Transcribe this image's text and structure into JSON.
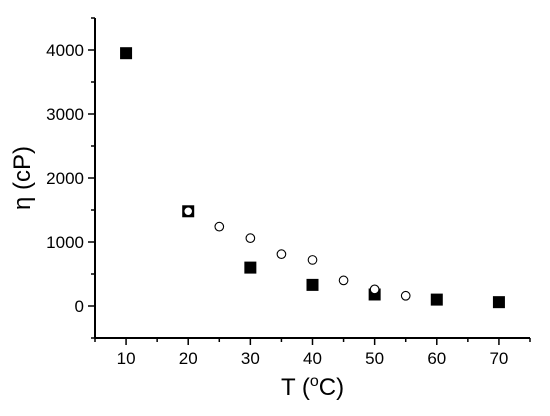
{
  "chart_data": {
    "type": "scatter",
    "xlabel_main": "T (",
    "xlabel_sup": "o",
    "xlabel_end": "C)",
    "ylabel": "η (cP)",
    "xlim": [
      5,
      75
    ],
    "ylim": [
      -500,
      4500
    ],
    "xticks": [
      10,
      20,
      30,
      40,
      50,
      60,
      70
    ],
    "yticks": [
      0,
      1000,
      2000,
      3000,
      4000
    ],
    "grid": false,
    "legend": false,
    "series": [
      {
        "marker": "filled-square",
        "x": [
          10,
          20,
          30,
          40,
          50,
          60,
          70
        ],
        "y": [
          3950,
          1480,
          600,
          330,
          180,
          100,
          60
        ]
      },
      {
        "marker": "open-circle",
        "x": [
          20,
          25,
          30,
          35,
          40,
          45,
          50,
          55
        ],
        "y": [
          1480,
          1240,
          1060,
          810,
          720,
          400,
          260,
          160
        ]
      }
    ]
  }
}
